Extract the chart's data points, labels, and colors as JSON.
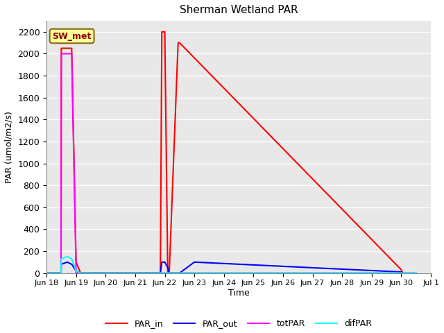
{
  "title": "Sherman Wetland PAR",
  "ylabel": "PAR (umol/m2/s)",
  "xlabel": "Time",
  "legend_label": "SW_met",
  "plot_bg_color": "#e8e8e8",
  "fig_bg_color": "#ffffff",
  "grid_color": "#ffffff",
  "series": {
    "PAR_in": {
      "color": "red",
      "x": [
        18.0,
        18.49,
        18.5,
        18.85,
        19.0,
        19.15,
        20.9,
        21.85,
        21.9,
        22.0,
        22.1,
        22.15,
        22.45,
        22.5,
        30.0,
        30.05
      ],
      "y": [
        0,
        0,
        2050,
        2050,
        100,
        0,
        0,
        0,
        2200,
        2200,
        0,
        0,
        2100,
        2100,
        30,
        0
      ]
    },
    "PAR_out": {
      "color": "blue",
      "x": [
        18.0,
        18.49,
        18.5,
        18.7,
        18.85,
        19.0,
        19.15,
        20.9,
        21.85,
        21.9,
        22.0,
        22.1,
        22.15,
        22.5,
        23.0,
        30.0,
        30.05
      ],
      "y": [
        0,
        0,
        80,
        100,
        80,
        20,
        0,
        0,
        0,
        100,
        100,
        50,
        0,
        0,
        100,
        10,
        0
      ]
    },
    "totPAR": {
      "color": "magenta",
      "x": [
        18.0,
        18.49,
        18.5,
        18.85,
        19.0,
        19.15,
        30.5
      ],
      "y": [
        0,
        0,
        2000,
        2000,
        0,
        0,
        0
      ]
    },
    "difPAR": {
      "color": "cyan",
      "x": [
        18.0,
        18.49,
        18.5,
        18.7,
        18.85,
        19.0,
        19.15,
        30.5
      ],
      "y": [
        0,
        0,
        130,
        150,
        130,
        20,
        0,
        0
      ]
    }
  },
  "xlim_days": [
    18.0,
    31.0
  ],
  "ylim": [
    0,
    2300
  ],
  "xtick_labels": [
    "Jun 18",
    "Jun 19",
    "Jun 20",
    "Jun 21",
    "Jun 22",
    "Jun 23",
    "Jun 24",
    "Jun 25",
    "Jun 26",
    "Jun 27",
    "Jun 28",
    "Jun 29",
    "Jun 30",
    "Jul 1"
  ],
  "xtick_positions": [
    18,
    19,
    20,
    21,
    22,
    23,
    24,
    25,
    26,
    27,
    28,
    29,
    30,
    31
  ],
  "ytick_labels": [
    "0",
    "200",
    "400",
    "600",
    "800",
    "1000",
    "1200",
    "1400",
    "1600",
    "1800",
    "2000",
    "2200"
  ],
  "ytick_positions": [
    0,
    200,
    400,
    600,
    800,
    1000,
    1200,
    1400,
    1600,
    1800,
    2000,
    2200
  ]
}
